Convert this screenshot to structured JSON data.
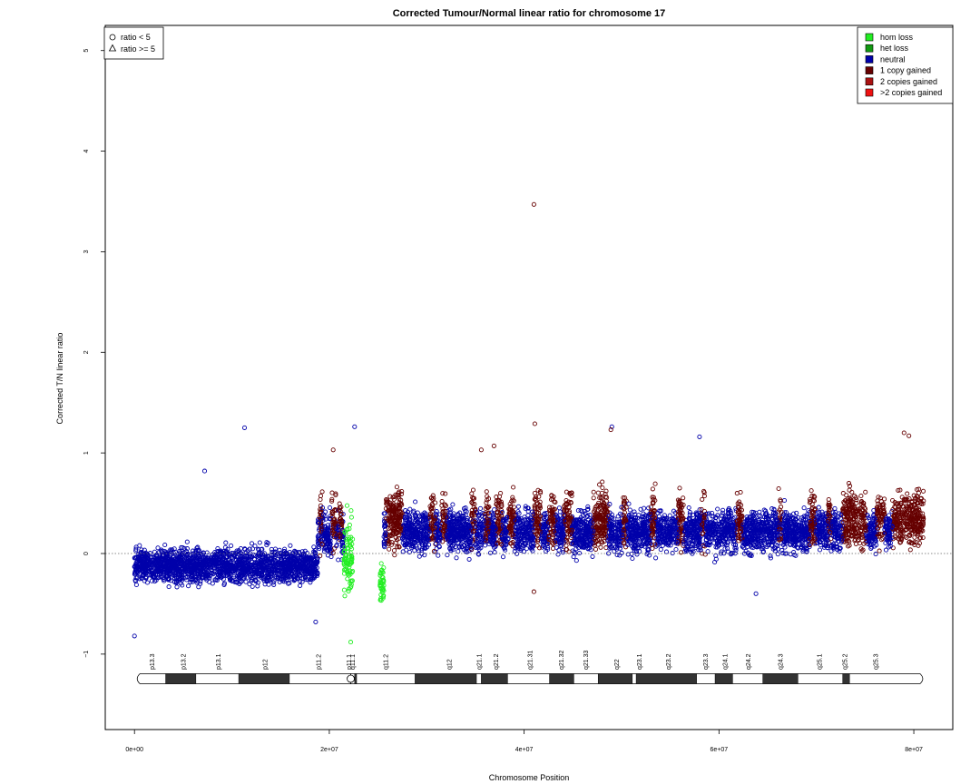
{
  "chart_data": {
    "type": "scatter",
    "title": "Corrected Tumour/Normal linear ratio for chromosome  17",
    "xlabel": "Chromosome Position",
    "ylabel": "Corrected T/N linear ratio",
    "xlim": [
      -3000000,
      84000000
    ],
    "ylim": [
      -1.75,
      5.25
    ],
    "x_ticks": [
      0,
      20000000,
      40000000,
      60000000,
      80000000
    ],
    "x_tick_labels": [
      "0e+00",
      "2e+07",
      "4e+07",
      "6e+07",
      "8e+07"
    ],
    "y_ticks": [
      -1,
      0,
      1,
      2,
      3,
      4,
      5
    ],
    "y_tick_labels": [
      "−1",
      "0",
      "1",
      "2",
      "3",
      "4",
      "5"
    ],
    "reference_line": 0,
    "shape_legend": {
      "placement": "top-left",
      "items": [
        {
          "symbol": "circle",
          "label": "ratio < 5"
        },
        {
          "symbol": "triangle",
          "label": "ratio >= 5"
        }
      ]
    },
    "color_legend": {
      "placement": "top-right",
      "items": [
        {
          "label": "hom loss",
          "color": "#22ee22"
        },
        {
          "label": "het loss",
          "color": "#119911"
        },
        {
          "label": "neutral",
          "color": "#0000aa"
        },
        {
          "label": "1 copy gained",
          "color": "#660000"
        },
        {
          "label": "2 copies gained",
          "color": "#aa1111"
        },
        {
          "label": ">2 copies gained",
          "color": "#ee1111"
        }
      ]
    },
    "segments": [
      {
        "start": 0,
        "end": 18800000,
        "center": -0.12,
        "spread": 0.16,
        "state": "neutral"
      },
      {
        "start": 18800000,
        "end": 21500000,
        "center": 0.18,
        "spread": 0.22,
        "state": "neutral"
      },
      {
        "start": 21500000,
        "end": 22400000,
        "center": -0.05,
        "spread": 0.35,
        "state": "hom loss"
      },
      {
        "start": 25200000,
        "end": 25600000,
        "center": -0.3,
        "spread": 0.18,
        "state": "hom loss"
      },
      {
        "start": 25600000,
        "end": 81000000,
        "center": 0.22,
        "spread": 0.2,
        "state": "neutral"
      }
    ],
    "gained_regions": [
      [
        19000000,
        19300000
      ],
      [
        20200000,
        20700000
      ],
      [
        21000000,
        21300000
      ],
      [
        25800000,
        27500000
      ],
      [
        30300000,
        30900000
      ],
      [
        31500000,
        32000000
      ],
      [
        34600000,
        35000000
      ],
      [
        36000000,
        36400000
      ],
      [
        37100000,
        37700000
      ],
      [
        38400000,
        39000000
      ],
      [
        41000000,
        41700000
      ],
      [
        42500000,
        43200000
      ],
      [
        44100000,
        44900000
      ],
      [
        47100000,
        48600000
      ],
      [
        50100000,
        50500000
      ],
      [
        53000000,
        53500000
      ],
      [
        55800000,
        56400000
      ],
      [
        58200000,
        58600000
      ],
      [
        61800000,
        62400000
      ],
      [
        66100000,
        66400000
      ],
      [
        69300000,
        69900000
      ],
      [
        71200000,
        71500000
      ],
      [
        72700000,
        75100000
      ],
      [
        76200000,
        77000000
      ],
      [
        77800000,
        81000000
      ]
    ],
    "outliers": [
      {
        "x": 41000000,
        "y": 3.47,
        "state": "1 copy gained"
      },
      {
        "x": 11300000,
        "y": 1.25,
        "state": "neutral"
      },
      {
        "x": 22600000,
        "y": 1.26,
        "state": "neutral"
      },
      {
        "x": 41100000,
        "y": 1.29,
        "state": "1 copy gained"
      },
      {
        "x": 49000000,
        "y": 1.26,
        "state": "neutral"
      },
      {
        "x": 48900000,
        "y": 1.23,
        "state": "1 copy gained"
      },
      {
        "x": 58000000,
        "y": 1.16,
        "state": "neutral"
      },
      {
        "x": 79000000,
        "y": 1.2,
        "state": "1 copy gained"
      },
      {
        "x": 79500000,
        "y": 1.17,
        "state": "1 copy gained"
      },
      {
        "x": 35600000,
        "y": 1.03,
        "state": "1 copy gained"
      },
      {
        "x": 36900000,
        "y": 1.07,
        "state": "1 copy gained"
      },
      {
        "x": 20400000,
        "y": 1.03,
        "state": "1 copy gained"
      },
      {
        "x": 7200000,
        "y": 0.82,
        "state": "neutral"
      },
      {
        "x": 0,
        "y": -0.82,
        "state": "neutral"
      },
      {
        "x": 22200000,
        "y": -0.88,
        "state": "hom loss"
      },
      {
        "x": 41000000,
        "y": -0.38,
        "state": "1 copy gained"
      },
      {
        "x": 63800000,
        "y": -0.4,
        "state": "neutral"
      },
      {
        "x": 18600000,
        "y": -0.68,
        "state": "neutral"
      }
    ],
    "ideogram": {
      "centromere": 22200000,
      "end": 81200000,
      "dark_bands": [
        [
          3200000,
          6300000
        ],
        [
          10700000,
          15900000
        ],
        [
          22600000,
          22800000
        ],
        [
          28800000,
          35100000
        ],
        [
          35600000,
          38300000
        ],
        [
          42600000,
          45100000
        ],
        [
          47600000,
          51100000
        ],
        [
          51500000,
          57700000
        ],
        [
          59600000,
          61400000
        ],
        [
          64500000,
          68100000
        ],
        [
          72700000,
          73400000
        ]
      ],
      "bands": [
        {
          "label": "p13.3",
          "pos": 1800000
        },
        {
          "label": "p13.2",
          "pos": 5000000
        },
        {
          "label": "p13.1",
          "pos": 8600000
        },
        {
          "label": "p12",
          "pos": 13400000
        },
        {
          "label": "p11.2",
          "pos": 18900000
        },
        {
          "label": "p11.1",
          "pos": 22000000
        },
        {
          "label": "q11.1",
          "pos": 22400000
        },
        {
          "label": "q11.2",
          "pos": 25800000
        },
        {
          "label": "q12",
          "pos": 32300000
        },
        {
          "label": "q21.1",
          "pos": 35400000
        },
        {
          "label": "q21.2",
          "pos": 37100000
        },
        {
          "label": "q21.31",
          "pos": 40600000
        },
        {
          "label": "q21.32",
          "pos": 43800000
        },
        {
          "label": "q21.33",
          "pos": 46300000
        },
        {
          "label": "q22",
          "pos": 49500000
        },
        {
          "label": "q23.1",
          "pos": 51800000
        },
        {
          "label": "q23.2",
          "pos": 54800000
        },
        {
          "label": "q23.3",
          "pos": 58600000
        },
        {
          "label": "q24.1",
          "pos": 60600000
        },
        {
          "label": "q24.2",
          "pos": 63000000
        },
        {
          "label": "q24.3",
          "pos": 66300000
        },
        {
          "label": "q25.1",
          "pos": 70300000
        },
        {
          "label": "q25.2",
          "pos": 72900000
        },
        {
          "label": "q25.3",
          "pos": 76100000
        }
      ]
    }
  }
}
